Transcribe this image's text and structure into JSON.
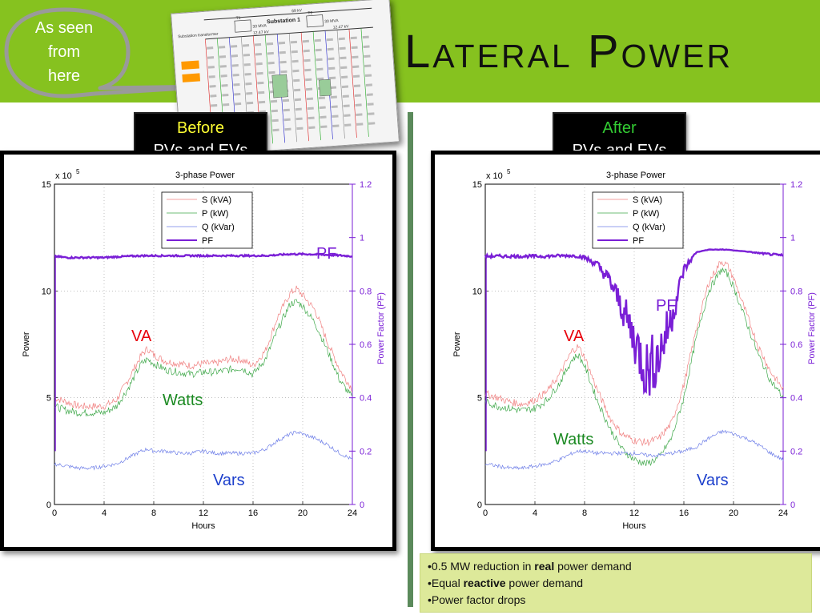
{
  "slide": {
    "title": "Lateral Power",
    "callout": {
      "line1": "As seen",
      "line2": "from",
      "line3": "here"
    },
    "thumbnail": {
      "label_bus": "69 kV",
      "label_substation": "Substation 1",
      "label_t1": "T1",
      "label_t2": "T2",
      "label_mva1": "30 MVA",
      "label_mva2": "30 MVA",
      "label_kv1": "12.47 kV",
      "label_kv2": "12.47 kV",
      "label_sub_transformer": "Substation transformer"
    },
    "before_label": {
      "line1": "Before",
      "line2": "PVs and EVs"
    },
    "after_label": {
      "line1": "After",
      "line2": "PVs and EVs"
    },
    "notes": {
      "item1_pre": "•0.5 MW reduction in ",
      "item1_bold": "real",
      "item1_post": " power demand",
      "item2_pre": "•Equal ",
      "item2_bold": "reactive",
      "item2_post": " power demand",
      "item3": "•Power factor drops"
    },
    "colors": {
      "header_green": "#86c21f",
      "before_label_text": "#ffff33",
      "after_label_text": "#33cc33",
      "pf_purple": "#7a1fd6",
      "va_red": "#e8000b",
      "watts_green": "#1b8a22",
      "vars_blue": "#1c3fcc",
      "notes_bg": "#dde99a"
    }
  },
  "chart_data": [
    {
      "type": "line",
      "panel": "before",
      "title": "3-phase Power",
      "exponent_label": "x 10",
      "exponent_power": "5",
      "xlabel": "Hours",
      "ylabel": "Power",
      "y2label": "Power Factor (PF)",
      "xlim": [
        0,
        24
      ],
      "ylim": [
        0,
        15
      ],
      "y2lim": [
        0,
        1.2
      ],
      "x_ticks": [
        "0",
        "4",
        "8",
        "12",
        "16",
        "20",
        "24"
      ],
      "y_ticks": [
        "0",
        "5",
        "10",
        "15"
      ],
      "y2_ticks": [
        "0",
        "0.2",
        "0.4",
        "0.6",
        "0.8",
        "1",
        "1.2"
      ],
      "grid": true,
      "legend": {
        "position": "top-center",
        "entries": [
          "S (kVA)",
          "P (kW)",
          "Q (kVar)",
          "PF"
        ]
      },
      "annotations": {
        "pf": "PF",
        "va": "VA",
        "watts": "Watts",
        "vars": "Vars"
      },
      "x": [
        0,
        1,
        2,
        3,
        4,
        5,
        6,
        7,
        7.5,
        8,
        9,
        10,
        11,
        12,
        13,
        14,
        15,
        16,
        17,
        18,
        19,
        19.5,
        20,
        21,
        22,
        23,
        24
      ],
      "series": [
        {
          "name": "S (kVA)",
          "values": [
            5.0,
            4.8,
            4.6,
            4.6,
            4.6,
            4.9,
            5.9,
            7.0,
            7.3,
            7.0,
            6.7,
            6.6,
            6.5,
            6.6,
            6.6,
            6.8,
            6.8,
            6.5,
            7.2,
            8.8,
            9.9,
            10.1,
            9.8,
            9.1,
            7.6,
            6.3,
            5.4
          ]
        },
        {
          "name": "P (kW)",
          "values": [
            4.6,
            4.4,
            4.3,
            4.3,
            4.3,
            4.6,
            5.5,
            6.6,
            6.8,
            6.6,
            6.3,
            6.2,
            6.1,
            6.2,
            6.2,
            6.3,
            6.4,
            6.1,
            6.8,
            8.2,
            9.4,
            9.5,
            9.3,
            8.5,
            7.2,
            5.8,
            5.0
          ]
        },
        {
          "name": "Q (kVar)",
          "values": [
            1.9,
            1.8,
            1.7,
            1.7,
            1.8,
            1.9,
            2.2,
            2.5,
            2.6,
            2.5,
            2.5,
            2.4,
            2.4,
            2.5,
            2.4,
            2.4,
            2.4,
            2.4,
            2.6,
            3.0,
            3.3,
            3.4,
            3.3,
            3.1,
            2.8,
            2.4,
            2.1
          ]
        },
        {
          "name": "PF",
          "axis": "right",
          "values": [
            0.93,
            0.925,
            0.925,
            0.925,
            0.925,
            0.928,
            0.93,
            0.932,
            0.932,
            0.932,
            0.932,
            0.932,
            0.932,
            0.932,
            0.932,
            0.932,
            0.932,
            0.932,
            0.932,
            0.935,
            0.938,
            0.938,
            0.938,
            0.937,
            0.935,
            0.933,
            0.93
          ]
        }
      ]
    },
    {
      "type": "line",
      "panel": "after",
      "title": "3-phase Power",
      "exponent_label": "x 10",
      "exponent_power": "5",
      "xlabel": "Hours",
      "ylabel": "Power",
      "y2label": "Power Factor (PF)",
      "xlim": [
        0,
        24
      ],
      "ylim": [
        0,
        15
      ],
      "y2lim": [
        0,
        1.2
      ],
      "x_ticks": [
        "0",
        "4",
        "8",
        "12",
        "16",
        "20",
        "24"
      ],
      "y_ticks": [
        "0",
        "5",
        "10",
        "15"
      ],
      "y2_ticks": [
        "0",
        "0.2",
        "0.4",
        "0.6",
        "0.8",
        "1",
        "1.2"
      ],
      "grid": true,
      "legend": {
        "position": "top-center",
        "entries": [
          "S (kVA)",
          "P (kW)",
          "Q (kVar)",
          "PF"
        ]
      },
      "annotations": {
        "pf": "PF",
        "va": "VA",
        "watts": "Watts",
        "vars": "Vars"
      },
      "x": [
        0,
        1,
        2,
        3,
        4,
        5,
        6,
        7,
        7.5,
        8,
        9,
        10,
        11,
        12,
        13,
        14,
        15,
        16,
        17,
        18,
        19,
        19.5,
        20,
        21,
        22,
        23,
        24
      ],
      "series": [
        {
          "name": "S (kVA)",
          "values": [
            5.2,
            5.0,
            4.8,
            4.7,
            4.9,
            5.3,
            6.1,
            7.2,
            7.4,
            6.9,
            5.4,
            4.1,
            3.3,
            3.0,
            2.9,
            3.1,
            3.8,
            5.6,
            8.2,
            10.4,
            11.4,
            11.2,
            10.6,
            9.0,
            7.4,
            6.2,
            5.4
          ]
        },
        {
          "name": "P (kW)",
          "values": [
            4.8,
            4.6,
            4.5,
            4.4,
            4.5,
            4.9,
            5.7,
            6.8,
            7.0,
            6.5,
            4.9,
            3.6,
            2.6,
            2.1,
            1.9,
            2.2,
            3.1,
            5.0,
            7.8,
            10.0,
            11.0,
            10.8,
            10.2,
            8.6,
            7.0,
            5.8,
            5.0
          ]
        },
        {
          "name": "Q (kVar)",
          "values": [
            1.9,
            1.8,
            1.7,
            1.7,
            1.8,
            1.9,
            2.1,
            2.4,
            2.5,
            2.5,
            2.4,
            2.4,
            2.4,
            2.4,
            2.3,
            2.3,
            2.4,
            2.5,
            2.7,
            3.1,
            3.4,
            3.4,
            3.3,
            3.1,
            2.8,
            2.4,
            2.1
          ]
        },
        {
          "name": "PF",
          "axis": "right",
          "values": [
            0.93,
            0.93,
            0.93,
            0.93,
            0.93,
            0.93,
            0.932,
            0.932,
            0.93,
            0.925,
            0.9,
            0.84,
            0.74,
            0.62,
            0.5,
            0.56,
            0.7,
            0.88,
            0.945,
            0.955,
            0.955,
            0.955,
            0.952,
            0.948,
            0.942,
            0.937,
            0.932
          ]
        }
      ]
    }
  ]
}
